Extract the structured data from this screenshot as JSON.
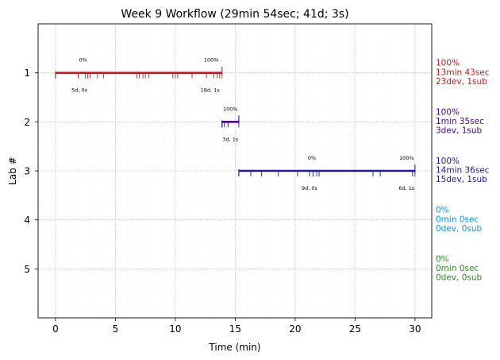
{
  "chart_data": {
    "type": "timeline",
    "title": "Week 9 Workflow (29min 54sec; 41d; 3s)",
    "xlabel": "Time (min)",
    "ylabel": "Lab #",
    "xlim": [
      -1.45,
      31.4
    ],
    "ylim": [
      6.0,
      0.0
    ],
    "xticks": [
      0,
      5,
      10,
      15,
      20,
      25,
      30
    ],
    "yticks": [
      1,
      2,
      3,
      4,
      5
    ],
    "grid": true,
    "labs": [
      {
        "lab": 1,
        "color": "#b22222",
        "start": 0.0,
        "end": 13.9,
        "event_ticks": [
          0.0,
          1.9,
          2.5,
          2.7,
          2.9,
          3.5,
          4.0,
          6.8,
          7.0,
          7.3,
          7.5,
          7.8,
          9.8,
          10.0,
          10.2,
          11.4,
          12.6,
          13.2,
          13.5,
          13.7,
          13.9
        ],
        "annotations": [
          {
            "x": 2.3,
            "pos": "above",
            "text": "0%"
          },
          {
            "x": 2.0,
            "pos": "below",
            "text": "5d, 0s"
          },
          {
            "x": 13.0,
            "pos": "above",
            "text": "100%"
          },
          {
            "x": 12.9,
            "pos": "below",
            "text": "18d, 1s"
          }
        ],
        "side": [
          "100%",
          "13min 43sec",
          "23dev, 1sub"
        ]
      },
      {
        "lab": 2,
        "color": "#4b0082",
        "start": 13.9,
        "end": 15.3,
        "event_ticks": [
          13.9,
          14.1,
          14.4,
          15.3
        ],
        "annotations": [
          {
            "x": 14.6,
            "pos": "above",
            "text": "100%"
          },
          {
            "x": 14.6,
            "pos": "below",
            "text": "3d, 1s"
          }
        ],
        "side": [
          "100%",
          "1min 35sec",
          "3dev, 1sub"
        ]
      },
      {
        "lab": 3,
        "color": "#1c1c8c",
        "start": 15.3,
        "end": 30.0,
        "event_ticks": [
          15.3,
          16.3,
          17.2,
          18.6,
          20.2,
          21.2,
          21.5,
          21.8,
          22.0,
          26.5,
          27.1,
          29.8,
          30.0
        ],
        "annotations": [
          {
            "x": 21.4,
            "pos": "above",
            "text": "0%"
          },
          {
            "x": 21.2,
            "pos": "below",
            "text": "9d, 0s"
          },
          {
            "x": 29.3,
            "pos": "above",
            "text": "100%"
          },
          {
            "x": 29.3,
            "pos": "below",
            "text": "6d, 1s"
          }
        ],
        "side": [
          "100%",
          "14min 36sec",
          "15dev, 1sub"
        ]
      },
      {
        "lab": 4,
        "color": "#1e8fe0",
        "start": null,
        "end": null,
        "event_ticks": [],
        "annotations": [],
        "side": [
          "0%",
          "0min 0sec",
          "0dev, 0sub"
        ]
      },
      {
        "lab": 5,
        "color": "#2e8b22",
        "start": null,
        "end": null,
        "event_ticks": [],
        "annotations": [],
        "side": [
          "0%",
          "0min 0sec",
          "0dev, 0sub"
        ]
      }
    ]
  }
}
